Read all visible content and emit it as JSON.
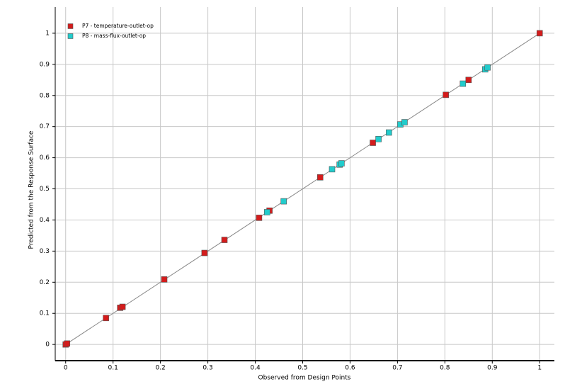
{
  "chart_data": {
    "type": "scatter",
    "x_label": "Observed from Design Points",
    "y_label": "Predicted from the Response Surface",
    "xlim": [
      -0.022,
      1.031
    ],
    "ylim": [
      -0.052,
      1.084
    ],
    "xticks": [
      0,
      0.1,
      0.2,
      0.3,
      0.4,
      0.5,
      0.6,
      0.7,
      0.8,
      0.9,
      1
    ],
    "yticks": [
      0,
      0.1,
      0.2,
      0.3,
      0.4,
      0.5,
      0.6,
      0.7,
      0.8,
      0.9,
      1
    ],
    "grid": true,
    "legend": "top-left",
    "series": [
      {
        "name": "P7 - temperature-outlet-op",
        "color": "#d41c1c",
        "x": [
          0,
          0.003,
          0.085,
          0.115,
          0.12,
          0.208,
          0.293,
          0.335,
          0.408,
          0.43,
          0.537,
          0.648,
          0.802,
          0.85,
          1
        ],
        "values": [
          0,
          0.003,
          0.085,
          0.118,
          0.121,
          0.209,
          0.294,
          0.336,
          0.407,
          0.43,
          0.537,
          0.648,
          0.802,
          0.85,
          1
        ]
      },
      {
        "name": "P8 - mass-flux-outlet-op",
        "color": "#22cccc",
        "x": [
          0.425,
          0.46,
          0.562,
          0.578,
          0.582,
          0.66,
          0.682,
          0.706,
          0.715,
          0.838,
          0.885,
          0.89
        ],
        "values": [
          0.425,
          0.46,
          0.563,
          0.578,
          0.582,
          0.66,
          0.681,
          0.707,
          0.714,
          0.838,
          0.884,
          0.89
        ]
      }
    ]
  }
}
